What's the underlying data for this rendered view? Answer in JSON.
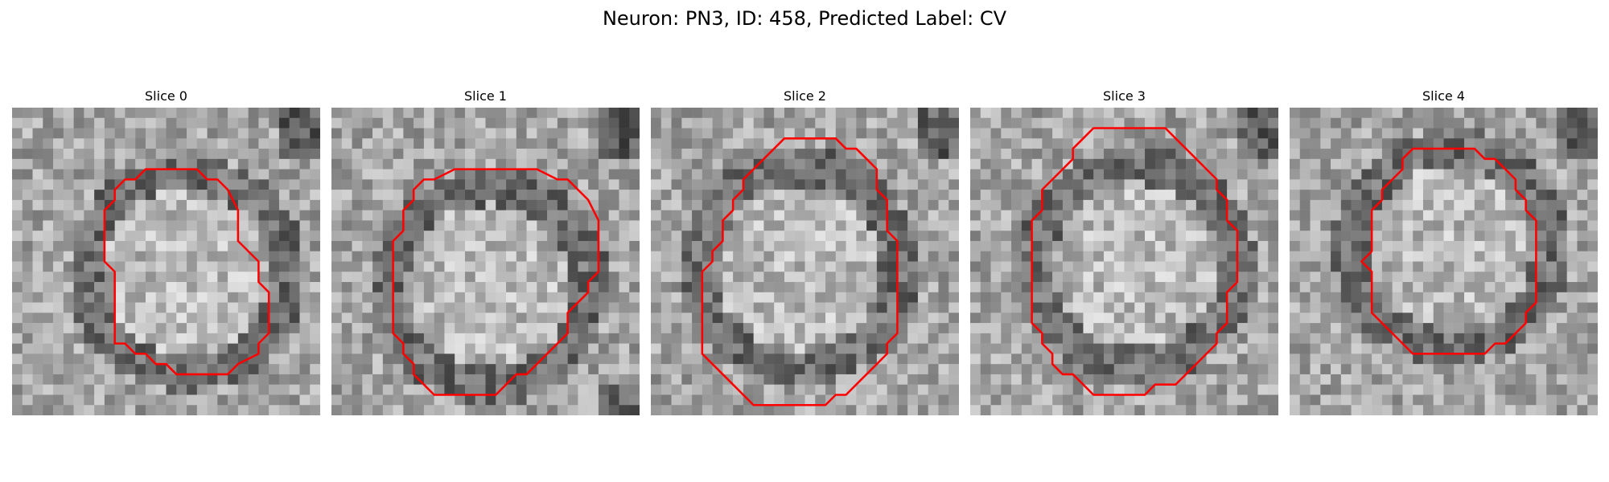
{
  "figure": {
    "title": "Neuron: PN3, ID: 458, Predicted Label: CV"
  },
  "panels": [
    {
      "title": "Slice 0"
    },
    {
      "title": "Slice 1"
    },
    {
      "title": "Slice 2"
    },
    {
      "title": "Slice 3"
    },
    {
      "title": "Slice 4"
    }
  ],
  "colors": {
    "contour": "#ff0000",
    "background": "#ffffff"
  }
}
